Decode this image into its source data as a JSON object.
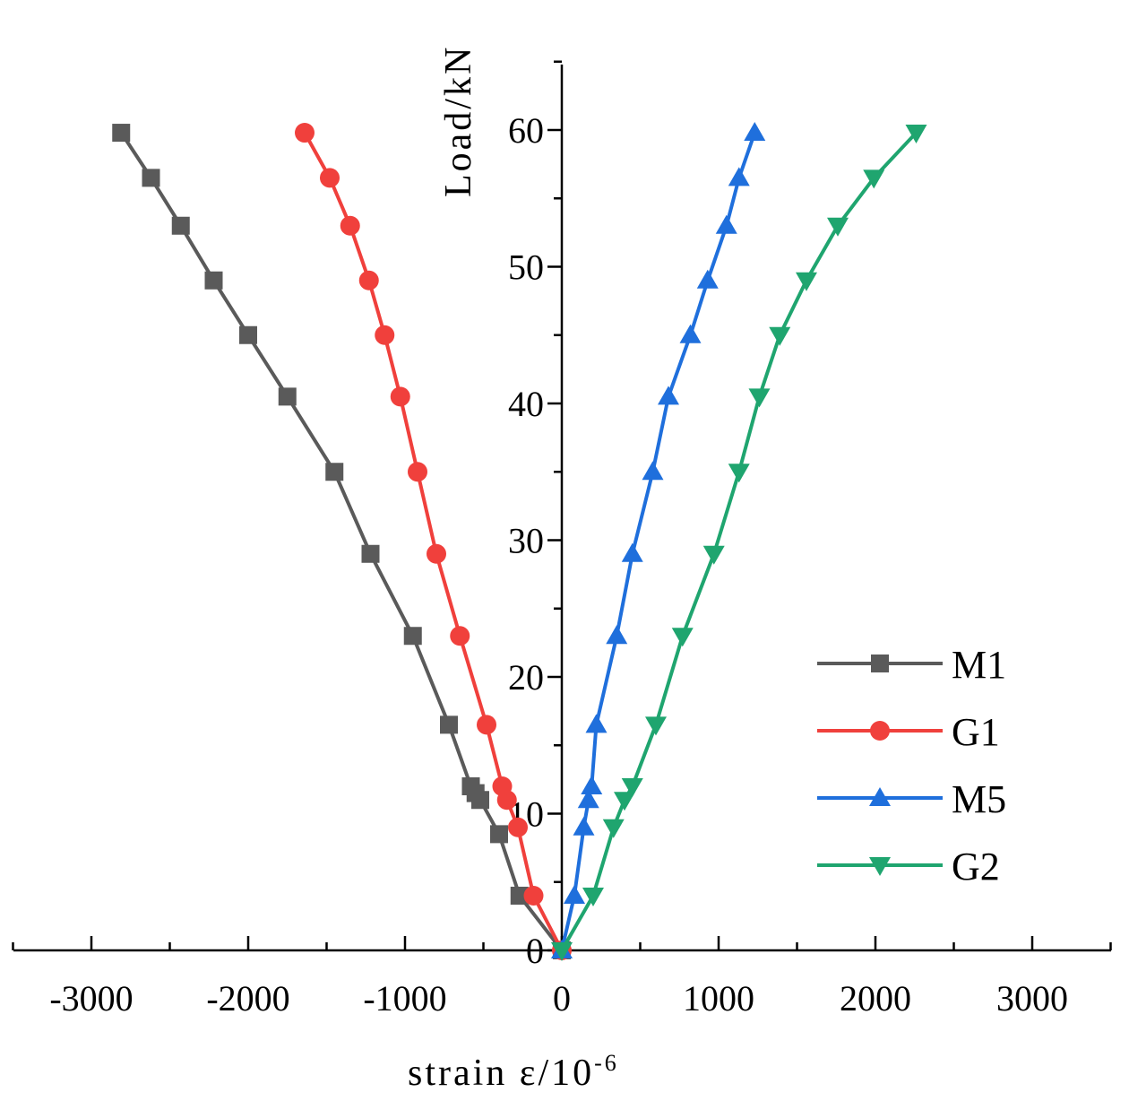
{
  "chart_data": {
    "type": "line",
    "title": "",
    "xlabel": "strain ε/10",
    "xlabel_superscript": "-6",
    "ylabel": "Load/kN",
    "xlim": [
      -3500,
      3500
    ],
    "ylim": [
      0,
      65
    ],
    "xticks": [
      -3000,
      -2000,
      -1000,
      0,
      1000,
      2000,
      3000
    ],
    "xtick_labels": [
      "-3000",
      "-2000",
      "-1000",
      "0",
      "1000",
      "2000",
      "3000"
    ],
    "yticks": [
      0,
      10,
      20,
      30,
      40,
      50,
      60
    ],
    "ytick_labels": [
      "0",
      "10",
      "20",
      "30",
      "40",
      "50",
      "60"
    ],
    "grid": false,
    "legend_position": "bottom-right",
    "series": [
      {
        "name": "M1",
        "color": "#5a5a5a",
        "marker": "square",
        "x": [
          0,
          -270,
          -400,
          -520,
          -550,
          -580,
          -720,
          -950,
          -1220,
          -1450,
          -1750,
          -2000,
          -2220,
          -2430,
          -2620,
          -2810
        ],
        "y": [
          0,
          4,
          8.5,
          11,
          11.5,
          12,
          16.5,
          23,
          29,
          35,
          40.5,
          45,
          49,
          53,
          56.5,
          59.8
        ]
      },
      {
        "name": "G1",
        "color": "#f0403c",
        "marker": "circle",
        "x": [
          0,
          -180,
          -280,
          -350,
          -380,
          -480,
          -650,
          -800,
          -920,
          -1030,
          -1130,
          -1230,
          -1350,
          -1480,
          -1640
        ],
        "y": [
          0,
          4,
          9,
          11,
          12,
          16.5,
          23,
          29,
          35,
          40.5,
          45,
          49,
          53,
          56.5,
          59.8
        ]
      },
      {
        "name": "M5",
        "color": "#1f6fdc",
        "marker": "triangle-up",
        "x": [
          0,
          80,
          140,
          170,
          190,
          220,
          350,
          450,
          580,
          680,
          820,
          930,
          1050,
          1130,
          1230
        ],
        "y": [
          0,
          4,
          9,
          11,
          12,
          16.5,
          23,
          29,
          35,
          40.5,
          45,
          49,
          53,
          56.5,
          59.8
        ]
      },
      {
        "name": "G2",
        "color": "#1fa56f",
        "marker": "triangle-down",
        "x": [
          0,
          200,
          330,
          400,
          450,
          600,
          770,
          970,
          1130,
          1260,
          1390,
          1560,
          1760,
          1990,
          2260
        ],
        "y": [
          0,
          4,
          9,
          11,
          12,
          16.5,
          23,
          29,
          35,
          40.5,
          45,
          49,
          53,
          56.5,
          59.8
        ]
      }
    ]
  }
}
